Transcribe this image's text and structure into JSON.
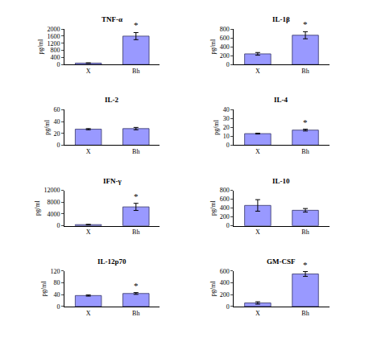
{
  "chart_data": [
    {
      "type": "bar",
      "title": "TNF-α",
      "ylabel": "pg/ml",
      "categories": [
        "X",
        "Bh"
      ],
      "values": [
        80,
        1600
      ],
      "errors": [
        15,
        200
      ],
      "color": "#9999ff",
      "ylim": [
        0,
        2000
      ],
      "yticks": [
        0,
        400,
        800,
        1200,
        1600,
        2000
      ],
      "annotations": [
        {
          "category": "Bh",
          "text": "*"
        }
      ]
    },
    {
      "type": "bar",
      "title": "IL-1β",
      "ylabel": "pg/ml",
      "categories": [
        "X",
        "Bh"
      ],
      "values": [
        240,
        660
      ],
      "errors": [
        30,
        80
      ],
      "color": "#9999ff",
      "ylim": [
        0,
        800
      ],
      "yticks": [
        0,
        200,
        400,
        600,
        800
      ],
      "annotations": [
        {
          "category": "Bh",
          "text": "*"
        }
      ]
    },
    {
      "type": "bar",
      "title": "IL-2",
      "ylabel": "pg/ml",
      "categories": [
        "X",
        "Bh"
      ],
      "values": [
        27,
        28
      ],
      "errors": [
        1,
        2
      ],
      "color": "#9999ff",
      "ylim": [
        0,
        60
      ],
      "yticks": [
        0,
        20,
        40,
        60
      ]
    },
    {
      "type": "bar",
      "title": "IL-4",
      "ylabel": "pg/ml",
      "categories": [
        "X",
        "Bh"
      ],
      "values": [
        13,
        17
      ],
      "errors": [
        0.5,
        1
      ],
      "color": "#9999ff",
      "ylim": [
        0,
        40
      ],
      "yticks": [
        0,
        10,
        20,
        30,
        40
      ],
      "annotations": [
        {
          "category": "Bh",
          "text": "*"
        }
      ]
    },
    {
      "type": "bar",
      "title": "IFN-γ",
      "ylabel": "pg/ml",
      "categories": [
        "X",
        "Bh"
      ],
      "values": [
        400,
        6400
      ],
      "errors": [
        100,
        1200
      ],
      "color": "#9999ff",
      "ylim": [
        0,
        12000
      ],
      "yticks": [
        0,
        4000,
        8000,
        12000
      ],
      "annotations": [
        {
          "category": "Bh",
          "text": "*"
        }
      ]
    },
    {
      "type": "bar",
      "title": "IL-10",
      "ylabel": "pg/ml",
      "categories": [
        "X",
        "Bh"
      ],
      "values": [
        460,
        350
      ],
      "errors": [
        130,
        40
      ],
      "color": "#9999ff",
      "ylim": [
        0,
        800
      ],
      "yticks": [
        0,
        200,
        400,
        600,
        800
      ]
    },
    {
      "type": "bar",
      "title": "IL-12p70",
      "ylabel": "pg/ml",
      "categories": [
        "X",
        "Bh"
      ],
      "values": [
        37,
        44
      ],
      "errors": [
        2,
        3
      ],
      "color": "#9999ff",
      "ylim": [
        0,
        120
      ],
      "yticks": [
        0,
        40,
        80,
        120
      ],
      "annotations": [
        {
          "category": "Bh",
          "text": "*"
        }
      ]
    },
    {
      "type": "bar",
      "title": "GM-CSF",
      "ylabel": "pg/ml",
      "categories": [
        "X",
        "Bh"
      ],
      "values": [
        60,
        550
      ],
      "errors": [
        20,
        40
      ],
      "color": "#9999ff",
      "ylim": [
        0,
        600
      ],
      "yticks": [
        0,
        200,
        400,
        600
      ],
      "annotations": [
        {
          "category": "Bh",
          "text": "*"
        }
      ]
    }
  ]
}
